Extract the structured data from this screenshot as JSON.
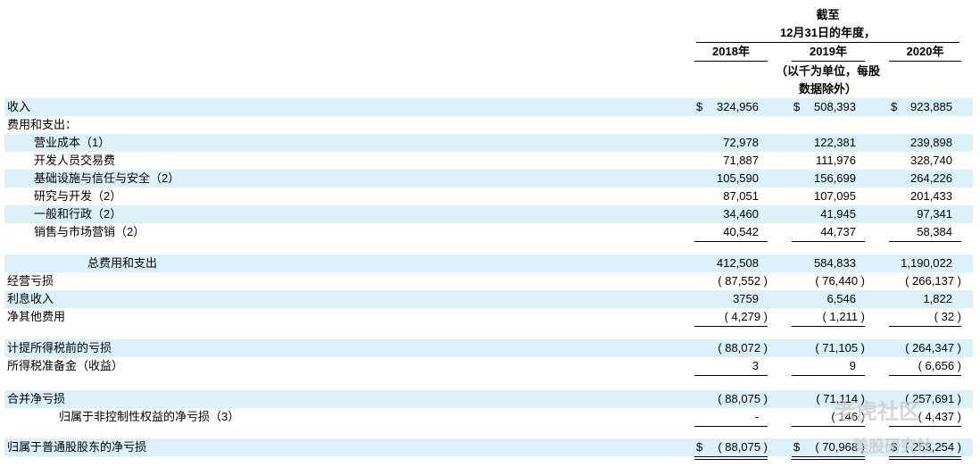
{
  "header": {
    "line1": "截至",
    "line2": "12月31日的年度，",
    "years": [
      "2018年",
      "2019年",
      "2020年"
    ],
    "note1": "（以千为单位，每股",
    "note2": "数据除外）"
  },
  "table": {
    "rows": [
      {
        "label": "收入",
        "prefix": "$",
        "values": [
          "324,956",
          "508,393",
          "923,885"
        ]
      },
      {
        "label": "费用和支出："
      },
      {
        "label": "营业成本（1）",
        "values": [
          "72,978",
          "122,381",
          "239,898"
        ]
      },
      {
        "label": "开发人员交易费",
        "values": [
          "71,887",
          "111,976",
          "328,740"
        ]
      },
      {
        "label": "基础设施与信任与安全（2）",
        "values": [
          "105,590",
          "156,699",
          "264,226"
        ]
      },
      {
        "label": "研究与开发（2）",
        "values": [
          "87,051",
          "107,095",
          "201,433"
        ]
      },
      {
        "label": "一般和行政（2）",
        "values": [
          "34,460",
          "41,945",
          "97,341"
        ]
      },
      {
        "label": "销售与市场营销（2）",
        "values": [
          "40,542",
          "44,737",
          "58,384"
        ],
        "underline": "single"
      },
      {
        "label": "总费用和支出",
        "values": [
          "412,508",
          "584,833",
          "1,190,022"
        ]
      },
      {
        "label": "经营亏损",
        "values": [
          "( 87,552 )",
          "( 76,440 )",
          "( 266,137 )"
        ]
      },
      {
        "label": "利息收入",
        "values": [
          "3759",
          "6,546",
          "1,822"
        ]
      },
      {
        "label": "净其他费用",
        "values": [
          "( 4,279 )",
          "( 1,211 )",
          "( 32 )"
        ],
        "underline": "single"
      },
      {
        "label": "计提所得税前的亏损",
        "values": [
          "( 88,072 )",
          "( 71,105 )",
          "( 264,347 )"
        ]
      },
      {
        "label": "所得税准备金（收益）",
        "values": [
          "3",
          "9",
          "( 6,656 )"
        ],
        "underline": "single"
      },
      {
        "label": "合并净亏损",
        "values": [
          "( 88,075 )",
          "( 71,114 )",
          "( 257,691 )"
        ]
      },
      {
        "label": "归属于非控制性权益的净亏损（3）",
        "values": [
          "-",
          "( 146 )",
          "( 4,437 )"
        ],
        "underline": "single"
      },
      {
        "label": "归属于普通股股东的净亏损",
        "prefix": "$",
        "values": [
          "( 88,075 )",
          "( 70,968 )",
          "( 253,254 )"
        ],
        "underline": "double"
      }
    ]
  },
  "watermark": {
    "text1": "老虎社区",
    "text2": "美股研究社"
  }
}
